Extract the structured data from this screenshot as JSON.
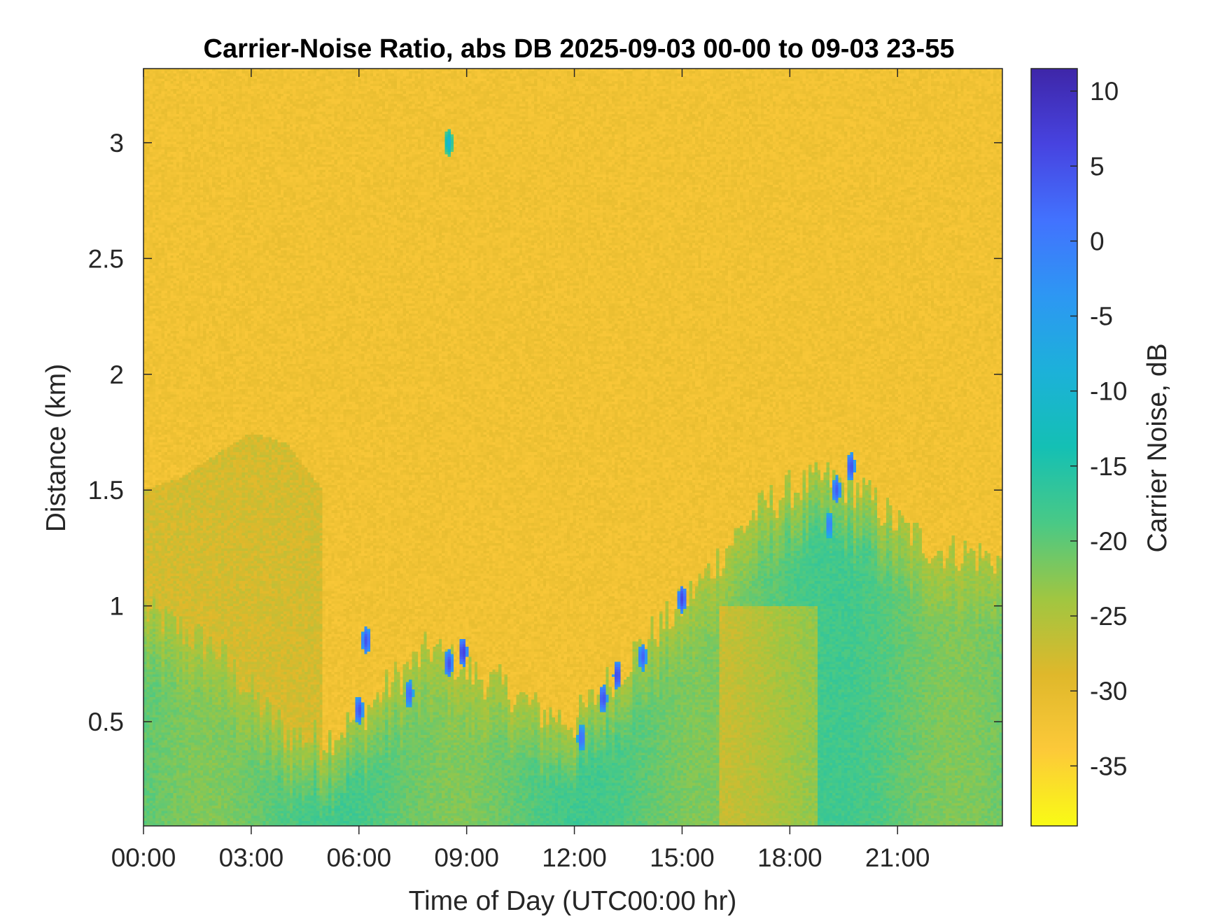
{
  "chart_data": {
    "type": "heatmap",
    "title": "Carrier-Noise Ratio, abs DB 2025-09-03 00-00 to 09-03 23-55",
    "xlabel": "Time of Day (UTC00:00 hr)",
    "ylabel": "Distance (km)",
    "colorbar_label": "Carrier Noise, dB",
    "x_unit": "hours",
    "xlim": [
      0,
      23.92
    ],
    "ylim": [
      0.05,
      3.32
    ],
    "clim": [
      -39,
      11.5
    ],
    "x_ticks": [
      0,
      3,
      6,
      9,
      12,
      15,
      18,
      21
    ],
    "x_tick_labels": [
      "00:00",
      "03:00",
      "06:00",
      "09:00",
      "12:00",
      "15:00",
      "18:00",
      "21:00"
    ],
    "y_ticks": [
      0.5,
      1,
      1.5,
      2,
      2.5,
      3
    ],
    "y_tick_labels": [
      "0.5",
      "1",
      "1.5",
      "2",
      "2.5",
      "3"
    ],
    "colorbar_ticks": [
      10,
      5,
      0,
      -5,
      -10,
      -15,
      -20,
      -25,
      -30,
      -35
    ],
    "colorbar_tick_labels": [
      "10",
      "5",
      "0",
      "-5",
      "-10",
      "-15",
      "-20",
      "-25",
      "-30",
      "-35"
    ],
    "colormap": [
      "#3e26a8",
      "#4743e0",
      "#4272fe",
      "#2d97f3",
      "#1cb1d9",
      "#14c0b4",
      "#49c986",
      "#a0c641",
      "#dfb82b",
      "#fcc939",
      "#f9fb15"
    ],
    "background_level_db": -32,
    "boundary_layer": {
      "description_points_hours": [
        0,
        1,
        2,
        3,
        4,
        5,
        6,
        7,
        8,
        9,
        10,
        11,
        12,
        13,
        14,
        15,
        16,
        17,
        18,
        19,
        20,
        21,
        22,
        23.9
      ],
      "top_km": [
        0.98,
        0.9,
        0.82,
        0.62,
        0.45,
        0.42,
        0.52,
        0.68,
        0.82,
        0.72,
        0.65,
        0.55,
        0.5,
        0.68,
        0.85,
        1.0,
        1.2,
        1.4,
        1.5,
        1.55,
        1.5,
        1.35,
        1.25,
        1.2
      ],
      "level_db": -20
    },
    "residual_layer": {
      "hours": [
        0,
        1,
        2,
        3,
        4,
        5
      ],
      "top_km": [
        1.5,
        1.55,
        1.65,
        1.75,
        1.7,
        1.5
      ],
      "level_db": -28
    },
    "strong_returns": [
      {
        "hour": 6.0,
        "km": 0.55,
        "db": 5
      },
      {
        "hour": 6.2,
        "km": 0.85,
        "db": 5
      },
      {
        "hour": 7.4,
        "km": 0.62,
        "db": 3
      },
      {
        "hour": 8.5,
        "km": 0.75,
        "db": 5
      },
      {
        "hour": 8.9,
        "km": 0.8,
        "db": 7
      },
      {
        "hour": 12.2,
        "km": 0.43,
        "db": 2
      },
      {
        "hour": 12.8,
        "km": 0.6,
        "db": 5
      },
      {
        "hour": 13.2,
        "km": 0.7,
        "db": 6
      },
      {
        "hour": 13.9,
        "km": 0.78,
        "db": 3
      },
      {
        "hour": 15.0,
        "km": 1.03,
        "db": 6
      },
      {
        "hour": 19.3,
        "km": 1.5,
        "db": 4
      },
      {
        "hour": 19.7,
        "km": 1.6,
        "db": 5
      },
      {
        "hour": 19.1,
        "km": 1.35,
        "db": 0
      },
      {
        "hour": 8.5,
        "km": 3.0,
        "db": -10
      }
    ]
  }
}
